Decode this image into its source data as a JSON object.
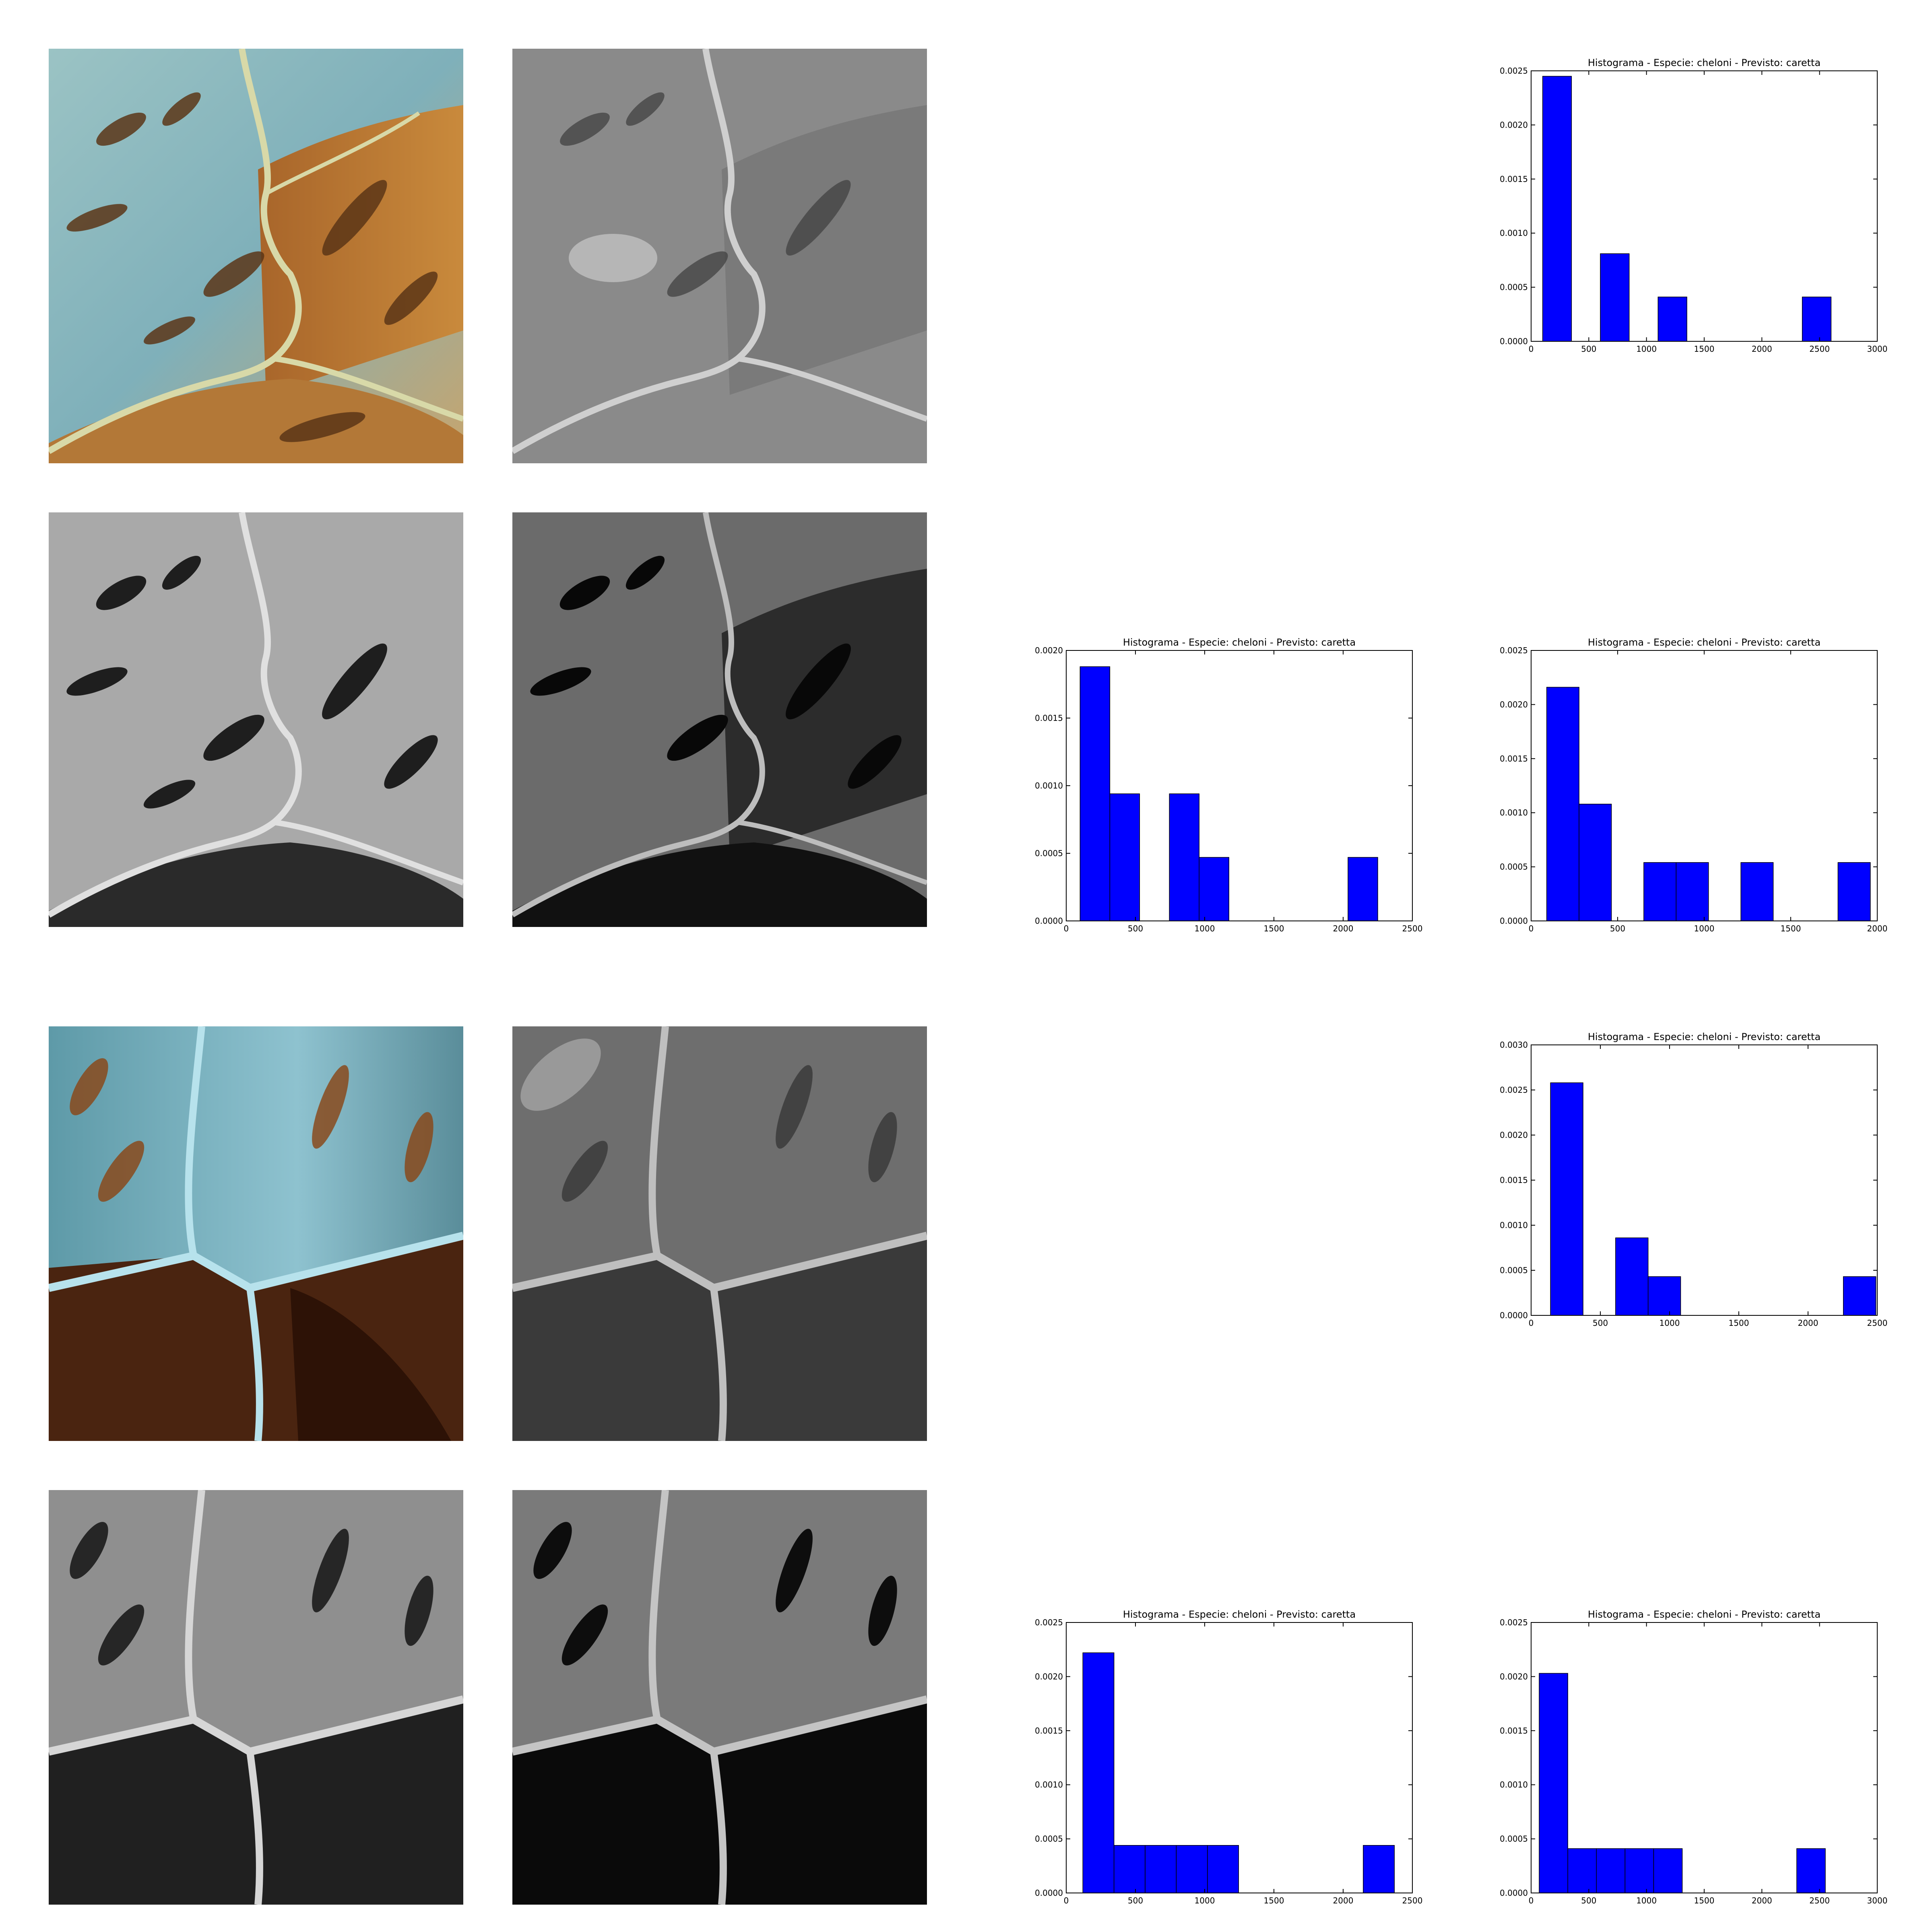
{
  "tiles": [
    {
      "id": "tile-1-color",
      "variant": "color-turtle-shell",
      "mode": "color"
    },
    {
      "id": "tile-1-gray",
      "variant": "grayscale-turtle-shell",
      "mode": "gray"
    },
    {
      "id": "tile-2-gray-a",
      "variant": "grayscale-equalized-turtle-shell",
      "mode": "gray"
    },
    {
      "id": "tile-2-gray-b",
      "variant": "grayscale-dark-turtle-shell",
      "mode": "dark"
    },
    {
      "id": "tile-3-color",
      "variant": "color-turtle-shell",
      "mode": "color2"
    },
    {
      "id": "tile-3-gray",
      "variant": "grayscale-turtle-shell",
      "mode": "gray2"
    },
    {
      "id": "tile-4-gray-a",
      "variant": "grayscale-equalized-turtle-shell",
      "mode": "gray2b"
    },
    {
      "id": "tile-4-gray-b",
      "variant": "grayscale-dark-turtle-shell",
      "mode": "dark2"
    }
  ],
  "chart_data": [
    {
      "type": "bar",
      "title": "Histograma - Especie: cheloni - Previsto: caretta",
      "xlim": [
        0,
        3000
      ],
      "ylim": [
        0,
        0.0025
      ],
      "xticks": [
        0,
        500,
        1000,
        1500,
        2000,
        2500,
        3000
      ],
      "xtick_labels": [
        "0",
        "500",
        "1000",
        "1500",
        "2000",
        "2500",
        "3000"
      ],
      "yticks": [
        0,
        0.0005,
        0.001,
        0.0015,
        0.002,
        0.0025
      ],
      "ytick_labels": [
        "0.0000",
        "0.0005",
        "0.0010",
        "0.0015",
        "0.0020",
        "0.0025"
      ],
      "bins": [
        {
          "x0": 100,
          "x1": 350,
          "value": 0.00245
        },
        {
          "x0": 350,
          "x1": 600,
          "value": 0
        },
        {
          "x0": 600,
          "x1": 850,
          "value": 0.00081
        },
        {
          "x0": 850,
          "x1": 1100,
          "value": 0
        },
        {
          "x0": 1100,
          "x1": 1350,
          "value": 0.00041
        },
        {
          "x0": 1350,
          "x1": 1600,
          "value": 0
        },
        {
          "x0": 1600,
          "x1": 1850,
          "value": 0
        },
        {
          "x0": 1850,
          "x1": 2100,
          "value": 0
        },
        {
          "x0": 2100,
          "x1": 2350,
          "value": 0
        },
        {
          "x0": 2350,
          "x1": 2600,
          "value": 0.00041
        }
      ],
      "bar_color": "#0000ff",
      "grid": false
    },
    {
      "type": "bar",
      "title": "Histograma - Especie: cheloni - Previsto: caretta",
      "xlim": [
        0,
        2500
      ],
      "ylim": [
        0,
        0.002
      ],
      "xticks": [
        0,
        500,
        1000,
        1500,
        2000,
        2500
      ],
      "xtick_labels": [
        "0",
        "500",
        "1000",
        "1500",
        "2000",
        "2500"
      ],
      "yticks": [
        0,
        0.0005,
        0.001,
        0.0015,
        0.002
      ],
      "ytick_labels": [
        "0.0000",
        "0.0005",
        "0.0010",
        "0.0015",
        "0.0020"
      ],
      "bins": [
        {
          "x0": 100,
          "x1": 315,
          "value": 0.00188
        },
        {
          "x0": 315,
          "x1": 530,
          "value": 0.00094
        },
        {
          "x0": 530,
          "x1": 745,
          "value": 0
        },
        {
          "x0": 745,
          "x1": 960,
          "value": 0.00094
        },
        {
          "x0": 960,
          "x1": 1175,
          "value": 0.00047
        },
        {
          "x0": 1175,
          "x1": 1390,
          "value": 0
        },
        {
          "x0": 1390,
          "x1": 1605,
          "value": 0
        },
        {
          "x0": 1605,
          "x1": 1820,
          "value": 0
        },
        {
          "x0": 1820,
          "x1": 2035,
          "value": 0
        },
        {
          "x0": 2035,
          "x1": 2250,
          "value": 0.00047
        }
      ],
      "bar_color": "#0000ff",
      "grid": false
    },
    {
      "type": "bar",
      "title": "Histograma - Especie: cheloni - Previsto: caretta",
      "xlim": [
        0,
        2000
      ],
      "ylim": [
        0,
        0.0025
      ],
      "xticks": [
        0,
        500,
        1000,
        1500,
        2000
      ],
      "xtick_labels": [
        "0",
        "500",
        "1000",
        "1500",
        "2000"
      ],
      "yticks": [
        0,
        0.0005,
        0.001,
        0.0015,
        0.002,
        0.0025
      ],
      "ytick_labels": [
        "0.0000",
        "0.0005",
        "0.0010",
        "0.0015",
        "0.0020",
        "0.0025"
      ],
      "bins": [
        {
          "x0": 90,
          "x1": 277,
          "value": 0.00216
        },
        {
          "x0": 277,
          "x1": 464,
          "value": 0.00108
        },
        {
          "x0": 464,
          "x1": 651,
          "value": 0
        },
        {
          "x0": 651,
          "x1": 838,
          "value": 0.00054
        },
        {
          "x0": 838,
          "x1": 1025,
          "value": 0.00054
        },
        {
          "x0": 1025,
          "x1": 1212,
          "value": 0
        },
        {
          "x0": 1212,
          "x1": 1399,
          "value": 0.00054
        },
        {
          "x0": 1399,
          "x1": 1586,
          "value": 0
        },
        {
          "x0": 1586,
          "x1": 1773,
          "value": 0
        },
        {
          "x0": 1773,
          "x1": 1960,
          "value": 0.00054
        }
      ],
      "bar_color": "#0000ff",
      "grid": false
    },
    {
      "type": "bar",
      "title": "Histograma - Especie: cheloni - Previsto: caretta",
      "xlim": [
        0,
        2500
      ],
      "ylim": [
        0,
        0.003
      ],
      "xticks": [
        0,
        500,
        1000,
        1500,
        2000,
        2500
      ],
      "xtick_labels": [
        "0",
        "500",
        "1000",
        "1500",
        "2000",
        "2500"
      ],
      "yticks": [
        0,
        0.0005,
        0.001,
        0.0015,
        0.002,
        0.0025,
        0.003
      ],
      "ytick_labels": [
        "0.0000",
        "0.0005",
        "0.0010",
        "0.0015",
        "0.0020",
        "0.0025",
        "0.0030"
      ],
      "bins": [
        {
          "x0": 140,
          "x1": 375,
          "value": 0.00258
        },
        {
          "x0": 375,
          "x1": 610,
          "value": 0
        },
        {
          "x0": 610,
          "x1": 845,
          "value": 0.00086
        },
        {
          "x0": 845,
          "x1": 1080,
          "value": 0.00043
        },
        {
          "x0": 1080,
          "x1": 1315,
          "value": 0
        },
        {
          "x0": 1315,
          "x1": 1550,
          "value": 0
        },
        {
          "x0": 1550,
          "x1": 1785,
          "value": 0
        },
        {
          "x0": 1785,
          "x1": 2020,
          "value": 0
        },
        {
          "x0": 2020,
          "x1": 2255,
          "value": 0
        },
        {
          "x0": 2255,
          "x1": 2490,
          "value": 0.00043
        }
      ],
      "bar_color": "#0000ff",
      "grid": false
    },
    {
      "type": "bar",
      "title": "Histograma - Especie: cheloni - Previsto: caretta",
      "xlim": [
        0,
        2500
      ],
      "ylim": [
        0,
        0.0025
      ],
      "xticks": [
        0,
        500,
        1000,
        1500,
        2000,
        2500
      ],
      "xtick_labels": [
        "0",
        "500",
        "1000",
        "1500",
        "2000",
        "2500"
      ],
      "yticks": [
        0,
        0.0005,
        0.001,
        0.0015,
        0.002,
        0.0025
      ],
      "ytick_labels": [
        "0.0000",
        "0.0005",
        "0.0010",
        "0.0015",
        "0.0020",
        "0.0025"
      ],
      "bins": [
        {
          "x0": 120,
          "x1": 345,
          "value": 0.00222
        },
        {
          "x0": 345,
          "x1": 570,
          "value": 0.00044
        },
        {
          "x0": 570,
          "x1": 795,
          "value": 0.00044
        },
        {
          "x0": 795,
          "x1": 1020,
          "value": 0.00044
        },
        {
          "x0": 1020,
          "x1": 1245,
          "value": 0.00044
        },
        {
          "x0": 1245,
          "x1": 1470,
          "value": 0
        },
        {
          "x0": 1470,
          "x1": 1695,
          "value": 0
        },
        {
          "x0": 1695,
          "x1": 1920,
          "value": 0
        },
        {
          "x0": 1920,
          "x1": 2145,
          "value": 0
        },
        {
          "x0": 2145,
          "x1": 2370,
          "value": 0.00044
        }
      ],
      "bar_color": "#0000ff",
      "grid": false
    },
    {
      "type": "bar",
      "title": "Histograma - Especie: cheloni - Previsto: caretta",
      "xlim": [
        0,
        3000
      ],
      "ylim": [
        0,
        0.0025
      ],
      "xticks": [
        0,
        500,
        1000,
        1500,
        2000,
        2500,
        3000
      ],
      "xtick_labels": [
        "0",
        "500",
        "1000",
        "1500",
        "2000",
        "2500",
        "3000"
      ],
      "yticks": [
        0,
        0.0005,
        0.001,
        0.0015,
        0.002,
        0.0025
      ],
      "ytick_labels": [
        "0.0000",
        "0.0005",
        "0.0010",
        "0.0015",
        "0.0020",
        "0.0025"
      ],
      "bins": [
        {
          "x0": 70,
          "x1": 318,
          "value": 0.00203
        },
        {
          "x0": 318,
          "x1": 566,
          "value": 0.00041
        },
        {
          "x0": 566,
          "x1": 814,
          "value": 0.00041
        },
        {
          "x0": 814,
          "x1": 1062,
          "value": 0.00041
        },
        {
          "x0": 1062,
          "x1": 1310,
          "value": 0.00041
        },
        {
          "x0": 1310,
          "x1": 1558,
          "value": 0
        },
        {
          "x0": 1558,
          "x1": 1806,
          "value": 0
        },
        {
          "x0": 1806,
          "x1": 2054,
          "value": 0
        },
        {
          "x0": 2054,
          "x1": 2302,
          "value": 0
        },
        {
          "x0": 2302,
          "x1": 2550,
          "value": 0.00041
        }
      ],
      "bar_color": "#0000ff",
      "grid": false
    }
  ]
}
